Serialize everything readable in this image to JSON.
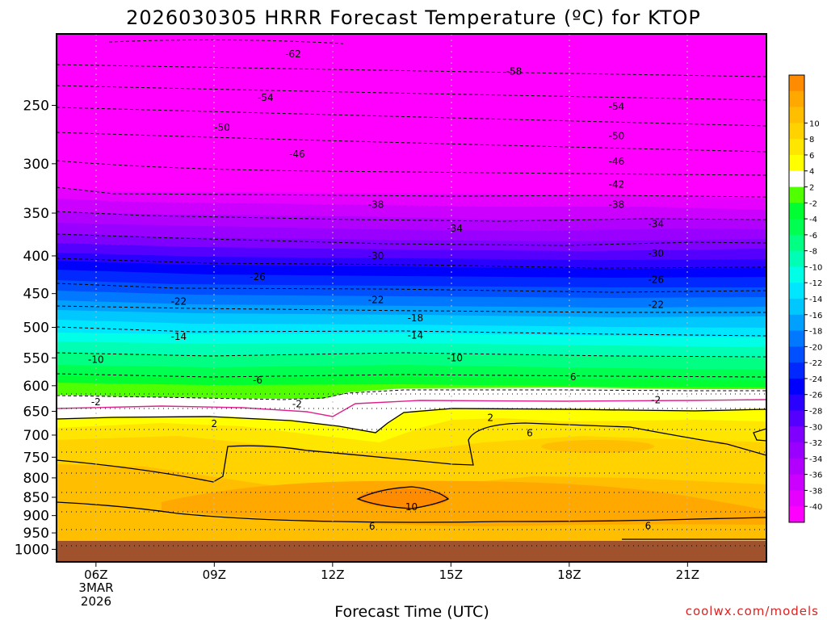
{
  "chart_data": {
    "type": "heatmap",
    "title": "2026030305 HRRR Forecast Temperature (ºC) for KTOP",
    "xlabel": "Forecast Time (UTC)",
    "ylabel": "",
    "x_ticks": [
      "06Z",
      "09Z",
      "12Z",
      "15Z",
      "18Z",
      "21Z"
    ],
    "x_date": [
      "3MAR",
      "2026"
    ],
    "x_range_hours": [
      5.0,
      23.0
    ],
    "y_ticks": [
      250,
      300,
      350,
      400,
      450,
      500,
      550,
      600,
      650,
      700,
      750,
      800,
      850,
      900,
      950,
      1000
    ],
    "y_range_hpa": [
      200,
      1040
    ],
    "y_axis": "pressure (hPa)",
    "credit": "coolwx.com/models",
    "colorbar": {
      "colors": [
        "#ff00ff",
        "#e600ff",
        "#cc00ff",
        "#b200ff",
        "#9900ff",
        "#7f00ff",
        "#5500ff",
        "#2a00ff",
        "#0000ff",
        "#0028ff",
        "#0050ff",
        "#0078ff",
        "#00a0ff",
        "#00c8ff",
        "#00e6ff",
        "#00ffe6",
        "#00ffb4",
        "#00ff82",
        "#00ff50",
        "#00ff32",
        "#50ff00",
        "#ffffff",
        "#ffff00",
        "#ffe600",
        "#ffd200",
        "#ffbe00",
        "#ffa800",
        "#ff8c00"
      ],
      "tick_labels": [
        "-40",
        "-38",
        "-36",
        "-34",
        "-32",
        "-30",
        "-28",
        "-26",
        "-24",
        "-22",
        "-20",
        "-18",
        "-16",
        "-14",
        "-12",
        "-10",
        "-8",
        "-6",
        "-4",
        "-2",
        "2",
        "4",
        "6",
        "8",
        "10"
      ]
    },
    "contour_labels": [
      {
        "value": "-62",
        "hour": 11.0,
        "hpa": 213
      },
      {
        "value": "-58",
        "hour": 16.6,
        "hpa": 225
      },
      {
        "value": "-54",
        "hour": 10.3,
        "hpa": 244
      },
      {
        "value": "-54",
        "hour": 19.2,
        "hpa": 251
      },
      {
        "value": "-50",
        "hour": 9.2,
        "hpa": 268
      },
      {
        "value": "-50",
        "hour": 19.2,
        "hpa": 275
      },
      {
        "value": "-46",
        "hour": 11.1,
        "hpa": 291
      },
      {
        "value": "-46",
        "hour": 19.2,
        "hpa": 298
      },
      {
        "value": "-42",
        "hour": 19.2,
        "hpa": 320
      },
      {
        "value": "-38",
        "hour": 13.1,
        "hpa": 341
      },
      {
        "value": "-38",
        "hour": 19.2,
        "hpa": 341
      },
      {
        "value": "-34",
        "hour": 15.1,
        "hpa": 367
      },
      {
        "value": "-34",
        "hour": 20.2,
        "hpa": 362
      },
      {
        "value": "-30",
        "hour": 13.1,
        "hpa": 400
      },
      {
        "value": "-30",
        "hour": 20.2,
        "hpa": 397
      },
      {
        "value": "-26",
        "hour": 10.1,
        "hpa": 427
      },
      {
        "value": "-26",
        "hour": 20.2,
        "hpa": 431
      },
      {
        "value": "-22",
        "hour": 8.1,
        "hpa": 461
      },
      {
        "value": "-22",
        "hour": 13.1,
        "hpa": 459
      },
      {
        "value": "-22",
        "hour": 20.2,
        "hpa": 466
      },
      {
        "value": "-18",
        "hour": 14.1,
        "hpa": 486
      },
      {
        "value": "-14",
        "hour": 8.1,
        "hpa": 515
      },
      {
        "value": "-14",
        "hour": 14.1,
        "hpa": 513
      },
      {
        "value": "-10",
        "hour": 6.0,
        "hpa": 553
      },
      {
        "value": "-10",
        "hour": 15.1,
        "hpa": 550
      },
      {
        "value": "-6",
        "hour": 10.1,
        "hpa": 590
      },
      {
        "value": "6",
        "hour": 18.1,
        "hpa": 584
      },
      {
        "value": "-2",
        "hour": 6.0,
        "hpa": 631
      },
      {
        "value": "-2",
        "hour": 11.1,
        "hpa": 635
      },
      {
        "value": "-2",
        "hour": 20.2,
        "hpa": 627
      },
      {
        "value": "2",
        "hour": 9.0,
        "hpa": 676
      },
      {
        "value": "2",
        "hour": 16.0,
        "hpa": 663
      },
      {
        "value": "6",
        "hour": 17.0,
        "hpa": 696
      },
      {
        "value": "10",
        "hour": 14.0,
        "hpa": 876
      },
      {
        "value": "6",
        "hour": 13.0,
        "hpa": 931
      },
      {
        "value": "6",
        "hour": 20.0,
        "hpa": 930
      }
    ]
  }
}
